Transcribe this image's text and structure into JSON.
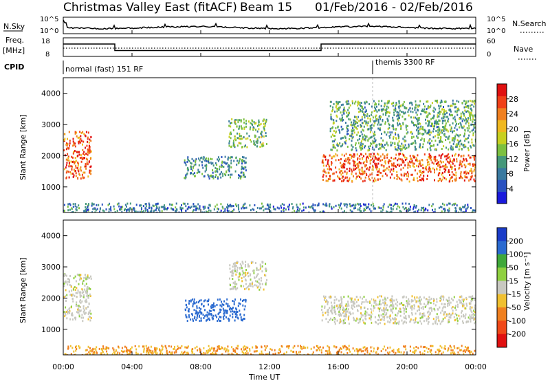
{
  "header": {
    "title": "Christmas Valley East (fitACF)",
    "beam": "Beam 15",
    "dates": "01/Feb/2016 - 02/Feb/2016"
  },
  "panels": {
    "nsky_label": "N.Sky",
    "nsearch_label": "N.Search",
    "freq_label_1": "Freq.",
    "freq_label_2": "[MHz]",
    "nave_label": "Nave",
    "cpid_label": "CPID",
    "left_ticks_nsky": [
      "10^5",
      "10^0"
    ],
    "right_ticks_nsearch": [
      "10^5",
      "10^0"
    ],
    "left_ticks_freq": [
      "18",
      "8"
    ],
    "right_ticks_nave": [
      "60",
      "0"
    ],
    "cpid_segments": [
      {
        "text": "normal (fast) 151 RF",
        "start_hour": 0
      },
      {
        "text": "themis 3300 RF",
        "start_hour": 18
      }
    ]
  },
  "axes": {
    "xlabel": "Time UT",
    "ylabel": "Slant Range [km]",
    "x_ticks": [
      "00:00",
      "04:00",
      "08:00",
      "12:00",
      "16:00",
      "20:00",
      "00:00"
    ],
    "x_range_hours": [
      0,
      24
    ],
    "y_ticks": [
      1000,
      2000,
      3000,
      4000
    ],
    "y_range_km": [
      180,
      4500
    ]
  },
  "colorbars": {
    "power": {
      "label": "Power [dB]",
      "ticks": [
        4,
        8,
        12,
        16,
        20,
        24,
        28
      ],
      "range": [
        0,
        32
      ],
      "colors": [
        "#1a1adc",
        "#2a52c0",
        "#3a7aa0",
        "#45987a",
        "#7cc040",
        "#c8d020",
        "#f0b820",
        "#f08020",
        "#f04018",
        "#e01010"
      ]
    },
    "velocity": {
      "label": "Velocity [m s⁻¹]",
      "ticks": [
        "200",
        "100",
        "50",
        "15",
        "-15",
        "-50",
        "-100",
        "-200"
      ],
      "bands": [
        "#1a3cc8",
        "#2a6ad0",
        "#3fa83a",
        "#8fd040",
        "#c8c8c0",
        "#f0c030",
        "#f08020",
        "#f04818",
        "#e01010"
      ]
    }
  },
  "chart_data": [
    {
      "type": "heatmap",
      "title": "Power",
      "xlabel": "Time UT",
      "ylabel": "Slant Range [km]",
      "xlim_hours": [
        0,
        24
      ],
      "ylim_km": [
        180,
        4500
      ],
      "colorbar": "Power [dB]",
      "regions": [
        {
          "t0": 0.0,
          "t1": 1.6,
          "r0": 1300,
          "r1": 2800,
          "power_db": 26
        },
        {
          "t0": 7.0,
          "t1": 10.6,
          "r0": 1300,
          "r1": 2000,
          "power_db": 10
        },
        {
          "t0": 9.6,
          "t1": 11.8,
          "r0": 2300,
          "r1": 3200,
          "power_db": 14
        },
        {
          "t0": 15.0,
          "t1": 24.0,
          "r0": 1200,
          "r1": 2100,
          "power_db": 26
        },
        {
          "t0": 15.5,
          "t1": 24.0,
          "r0": 2200,
          "r1": 3800,
          "power_db": 12
        },
        {
          "t0": 0.0,
          "t1": 24.0,
          "r0": 180,
          "r1": 500,
          "power_db": 8
        }
      ]
    },
    {
      "type": "heatmap",
      "title": "Velocity",
      "xlabel": "Time UT",
      "ylabel": "Slant Range [km]",
      "xlim_hours": [
        0,
        24
      ],
      "ylim_km": [
        180,
        4500
      ],
      "colorbar": "Velocity [m s-1]",
      "regions": [
        {
          "t0": 0.0,
          "t1": 1.6,
          "r0": 1300,
          "r1": 2800,
          "velocity": 0
        },
        {
          "t0": 7.0,
          "t1": 10.6,
          "r0": 1300,
          "r1": 2000,
          "velocity": 150
        },
        {
          "t0": 9.6,
          "t1": 11.8,
          "r0": 2300,
          "r1": 3200,
          "velocity": 0
        },
        {
          "t0": 15.0,
          "t1": 24.0,
          "r0": 1200,
          "r1": 2100,
          "velocity": 0
        },
        {
          "t0": 0.0,
          "t1": 24.0,
          "r0": 180,
          "r1": 500,
          "velocity": -50
        }
      ]
    }
  ]
}
